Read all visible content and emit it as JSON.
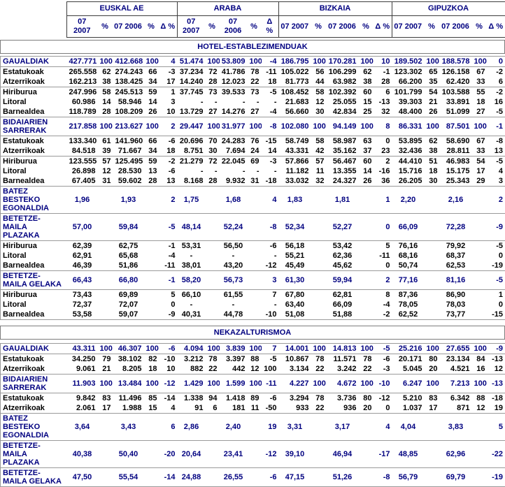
{
  "table": {
    "regions": [
      "EUSKAL AE",
      "ARABA",
      "BIZKAIA",
      "GIPUZKOA"
    ],
    "subcolumns": [
      "07 2007",
      "%",
      "07 2006",
      "%",
      "Δ %"
    ],
    "colors": {
      "accent": "#000080",
      "text": "#000000",
      "grid": "#9a9a9a"
    },
    "sections": [
      {
        "title": "HOTEL-ESTABLEZIMENDUAK",
        "rows": [
          {
            "label": "GAUALDIAK",
            "style": "main",
            "sep": "bottom",
            "cells": [
              "427.771",
              "100",
              "412.668",
              "100",
              "4",
              "51.474",
              "100",
              "53.809",
              "100",
              "-4",
              "186.795",
              "100",
              "170.281",
              "100",
              "10",
              "189.502",
              "100",
              "188.578",
              "100",
              "0"
            ]
          },
          {
            "label": "Estatukoak",
            "style": "sub",
            "sep": "",
            "cells": [
              "265.558",
              "62",
              "274.243",
              "66",
              "-3",
              "37.234",
              "72",
              "41.786",
              "78",
              "-11",
              "105.022",
              "56",
              "106.299",
              "62",
              "-1",
              "123.302",
              "65",
              "126.158",
              "67",
              "-2"
            ]
          },
          {
            "label": "Atzerrikoak",
            "style": "sub",
            "sep": "",
            "cells": [
              "162.213",
              "38",
              "138.425",
              "34",
              "17",
              "14.240",
              "28",
              "12.023",
              "22",
              "18",
              "81.773",
              "44",
              "63.982",
              "38",
              "28",
              "66.200",
              "35",
              "62.420",
              "33",
              "6"
            ]
          },
          {
            "label": "Hiriburua",
            "style": "sub",
            "sep": "top",
            "cells": [
              "247.996",
              "58",
              "245.513",
              "59",
              "1",
              "37.745",
              "73",
              "39.533",
              "73",
              "-5",
              "108.452",
              "58",
              "102.392",
              "60",
              "6",
              "101.799",
              "54",
              "103.588",
              "55",
              "-2"
            ]
          },
          {
            "label": "Litoral",
            "style": "sub",
            "sep": "",
            "cells": [
              "60.986",
              "14",
              "58.946",
              "14",
              "3",
              "-",
              "-",
              "-",
              "-",
              "-",
              "21.683",
              "12",
              "25.055",
              "15",
              "-13",
              "39.303",
              "21",
              "33.891",
              "18",
              "16"
            ]
          },
          {
            "label": "Barnealdea",
            "style": "sub",
            "sep": "",
            "cells": [
              "118.789",
              "28",
              "108.209",
              "26",
              "10",
              "13.729",
              "27",
              "14.276",
              "27",
              "-4",
              "56.660",
              "30",
              "42.834",
              "25",
              "32",
              "48.400",
              "26",
              "51.099",
              "27",
              "-5"
            ]
          },
          {
            "label": "BIDAIARIEN SARRERAK",
            "style": "main",
            "sep": "both",
            "cells": [
              "217.858",
              "100",
              "213.627",
              "100",
              "2",
              "29.447",
              "100",
              "31.977",
              "100",
              "-8",
              "102.080",
              "100",
              "94.149",
              "100",
              "8",
              "86.331",
              "100",
              "87.501",
              "100",
              "-1"
            ]
          },
          {
            "label": "Estatukoak",
            "style": "sub",
            "sep": "",
            "cells": [
              "133.340",
              "61",
              "141.960",
              "66",
              "-6",
              "20.696",
              "70",
              "24.283",
              "76",
              "-15",
              "58.749",
              "58",
              "58.987",
              "63",
              "0",
              "53.895",
              "62",
              "58.690",
              "67",
              "-8"
            ]
          },
          {
            "label": "Atzerrikoak",
            "style": "sub",
            "sep": "",
            "cells": [
              "84.518",
              "39",
              "71.667",
              "34",
              "18",
              "8.751",
              "30",
              "7.694",
              "24",
              "14",
              "43.331",
              "42",
              "35.162",
              "37",
              "23",
              "32.436",
              "38",
              "28.811",
              "33",
              "13"
            ]
          },
          {
            "label": "Hiriburua",
            "style": "sub",
            "sep": "top",
            "cells": [
              "123.555",
              "57",
              "125.495",
              "59",
              "-2",
              "21.279",
              "72",
              "22.045",
              "69",
              "-3",
              "57.866",
              "57",
              "56.467",
              "60",
              "2",
              "44.410",
              "51",
              "46.983",
              "54",
              "-5"
            ]
          },
          {
            "label": "Litoral",
            "style": "sub",
            "sep": "",
            "cells": [
              "26.898",
              "12",
              "28.530",
              "13",
              "-6",
              "-",
              "-",
              "-",
              "-",
              "-",
              "11.182",
              "11",
              "13.355",
              "14",
              "-16",
              "15.716",
              "18",
              "15.175",
              "17",
              "4"
            ]
          },
          {
            "label": "Barnealdea",
            "style": "sub",
            "sep": "",
            "cells": [
              "67.405",
              "31",
              "59.602",
              "28",
              "13",
              "8.168",
              "28",
              "9.932",
              "31",
              "-18",
              "33.032",
              "32",
              "24.327",
              "26",
              "36",
              "26.205",
              "30",
              "25.343",
              "29",
              "3"
            ]
          },
          {
            "label": "BATEZ BESTEKO EGONALDIA",
            "style": "main",
            "sep": "both",
            "cells": [
              "1,96",
              "",
              "1,93",
              "",
              "2",
              "1,75",
              "",
              "1,68",
              "",
              "4",
              "1,83",
              "",
              "1,81",
              "",
              "1",
              "2,20",
              "",
              "2,16",
              "",
              "2"
            ]
          },
          {
            "label": "BETETZE-MAILA PLAZAKA",
            "style": "main",
            "sep": "both",
            "cells": [
              "57,00",
              "",
              "59,84",
              "",
              "-5",
              "48,14",
              "",
              "52,24",
              "",
              "-8",
              "52,34",
              "",
              "52,27",
              "",
              "0",
              "66,09",
              "",
              "72,28",
              "",
              "-9"
            ]
          },
          {
            "label": "Hiriburua",
            "style": "sub",
            "sep": "",
            "cells": [
              "62,39",
              "",
              "62,75",
              "",
              "-1",
              "53,31",
              "",
              "56,50",
              "",
              "-6",
              "56,18",
              "",
              "53,42",
              "",
              "5",
              "76,16",
              "",
              "79,92",
              "",
              "-5"
            ]
          },
          {
            "label": "Litoral",
            "style": "sub",
            "sep": "",
            "cells": [
              "62,91",
              "",
              "65,68",
              "",
              "-4",
              "-",
              "",
              "-",
              "",
              "-",
              "55,21",
              "",
              "62,36",
              "",
              "-11",
              "68,16",
              "",
              "68,37",
              "",
              "0"
            ]
          },
          {
            "label": "Barnealdea",
            "style": "sub",
            "sep": "",
            "cells": [
              "46,39",
              "",
              "51,86",
              "",
              "-11",
              "38,01",
              "",
              "43,20",
              "",
              "-12",
              "45,49",
              "",
              "45,62",
              "",
              "0",
              "50,74",
              "",
              "62,53",
              "",
              "-19"
            ]
          },
          {
            "label": "BETETZE-MAILA GELAKA",
            "style": "main",
            "sep": "both",
            "cells": [
              "66,43",
              "",
              "66,80",
              "",
              "-1",
              "58,20",
              "",
              "56,73",
              "",
              "3",
              "61,30",
              "",
              "59,94",
              "",
              "2",
              "77,16",
              "",
              "81,16",
              "",
              "-5"
            ]
          },
          {
            "label": "Hiriburua",
            "style": "sub",
            "sep": "",
            "cells": [
              "73,43",
              "",
              "69,89",
              "",
              "5",
              "66,10",
              "",
              "61,55",
              "",
              "7",
              "67,80",
              "",
              "62,81",
              "",
              "8",
              "87,36",
              "",
              "86,90",
              "",
              "1"
            ]
          },
          {
            "label": "Litoral",
            "style": "sub",
            "sep": "",
            "cells": [
              "72,37",
              "",
              "72,07",
              "",
              "0",
              "-",
              "",
              "-",
              "",
              "-",
              "63,40",
              "",
              "66,09",
              "",
              "-4",
              "78,05",
              "",
              "78,03",
              "",
              "0"
            ]
          },
          {
            "label": "Barnealdea",
            "style": "sub",
            "sep": "",
            "cells": [
              "53,58",
              "",
              "59,07",
              "",
              "-9",
              "40,31",
              "",
              "44,78",
              "",
              "-10",
              "51,08",
              "",
              "51,88",
              "",
              "-2",
              "62,52",
              "",
              "73,77",
              "",
              "-15"
            ]
          }
        ]
      },
      {
        "title": "NEKAZALTURISMOA",
        "rows": [
          {
            "label": "GAUALDIAK",
            "style": "main",
            "sep": "bottom",
            "cells": [
              "43.311",
              "100",
              "46.307",
              "100",
              "-6",
              "4.094",
              "100",
              "3.839",
              "100",
              "7",
              "14.001",
              "100",
              "14.813",
              "100",
              "-5",
              "25.216",
              "100",
              "27.655",
              "100",
              "-9"
            ]
          },
          {
            "label": "Estatukoak",
            "style": "sub",
            "sep": "",
            "cells": [
              "34.250",
              "79",
              "38.102",
              "82",
              "-10",
              "3.212",
              "78",
              "3.397",
              "88",
              "-5",
              "10.867",
              "78",
              "11.571",
              "78",
              "-6",
              "20.171",
              "80",
              "23.134",
              "84",
              "-13"
            ]
          },
          {
            "label": "Atzerrikoak",
            "style": "sub",
            "sep": "",
            "cells": [
              "9.061",
              "21",
              "8.205",
              "18",
              "10",
              "882",
              "22",
              "442",
              "12",
              "100",
              "3.134",
              "22",
              "3.242",
              "22",
              "-3",
              "5.045",
              "20",
              "4.521",
              "16",
              "12"
            ]
          },
          {
            "label": "BIDAIARIEN SARRERAK",
            "style": "main",
            "sep": "both",
            "cells": [
              "11.903",
              "100",
              "13.484",
              "100",
              "-12",
              "1.429",
              "100",
              "1.599",
              "100",
              "-11",
              "4.227",
              "100",
              "4.672",
              "100",
              "-10",
              "6.247",
              "100",
              "7.213",
              "100",
              "-13"
            ]
          },
          {
            "label": "Estatukoak",
            "style": "sub",
            "sep": "",
            "cells": [
              "9.842",
              "83",
              "11.496",
              "85",
              "-14",
              "1.338",
              "94",
              "1.418",
              "89",
              "-6",
              "3.294",
              "78",
              "3.736",
              "80",
              "-12",
              "5.210",
              "83",
              "6.342",
              "88",
              "-18"
            ]
          },
          {
            "label": "Atzerrikoak",
            "style": "sub",
            "sep": "",
            "cells": [
              "2.061",
              "17",
              "1.988",
              "15",
              "4",
              "91",
              "6",
              "181",
              "11",
              "-50",
              "933",
              "22",
              "936",
              "20",
              "0",
              "1.037",
              "17",
              "871",
              "12",
              "19"
            ]
          },
          {
            "label": "BATEZ BESTEKO EGONALDIA",
            "style": "main",
            "sep": "both",
            "cells": [
              "3,64",
              "",
              "3,43",
              "",
              "6",
              "2,86",
              "",
              "2,40",
              "",
              "19",
              "3,31",
              "",
              "3,17",
              "",
              "4",
              "4,04",
              "",
              "3,83",
              "",
              "5"
            ]
          },
          {
            "label": "BETETZE-MAILA PLAZAKA",
            "style": "main",
            "sep": "both",
            "cells": [
              "40,38",
              "",
              "50,40",
              "",
              "-20",
              "20,64",
              "",
              "23,41",
              "",
              "-12",
              "39,10",
              "",
              "46,94",
              "",
              "-17",
              "48,85",
              "",
              "62,96",
              "",
              "-22"
            ]
          },
          {
            "label": "BETETZE-MAILA GELAKA",
            "style": "main",
            "sep": "both",
            "cells": [
              "47,50",
              "",
              "55,54",
              "",
              "-14",
              "24,88",
              "",
              "26,55",
              "",
              "-6",
              "47,15",
              "",
              "51,26",
              "",
              "-8",
              "56,79",
              "",
              "69,79",
              "",
              "-19"
            ]
          }
        ]
      }
    ]
  }
}
